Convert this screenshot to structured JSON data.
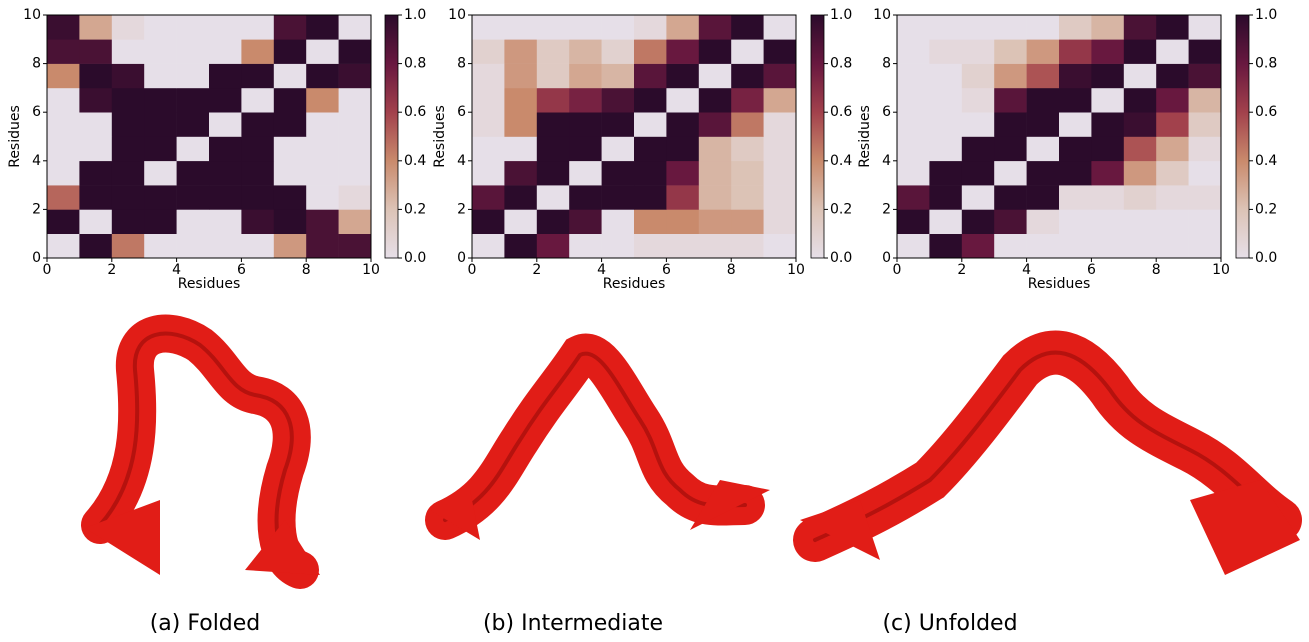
{
  "chart_data": [
    {
      "type": "heatmap",
      "caption": "(a) Folded",
      "xlabel": "Residues",
      "ylabel": "Residues",
      "xlim": [
        0,
        10
      ],
      "ylim": [
        0,
        10
      ],
      "xticks": [
        0,
        2,
        4,
        6,
        8,
        10
      ],
      "yticks": [
        0,
        2,
        4,
        6,
        8,
        10
      ],
      "clim": [
        0,
        1
      ],
      "cticks": [
        {
          "value": 0,
          "label": "0.0"
        },
        0.2,
        0.4,
        0.6,
        0.8,
        {
          "value": 1,
          "label": "1.0"
        }
      ],
      "colormap": [
        "#e6dfe8",
        "#dcc3b6",
        "#c98a6c",
        "#a2414c",
        "#68183f",
        "#2b0b2b"
      ],
      "z": [
        [
          0,
          1,
          0.45,
          0,
          0,
          0,
          0,
          0.35,
          0.9,
          0.9
        ],
        [
          1,
          0,
          1,
          1,
          0,
          0,
          0.95,
          1,
          0.9,
          0.3
        ],
        [
          0.5,
          1,
          1,
          1,
          1,
          1,
          1,
          1,
          0,
          0.05
        ],
        [
          0,
          1,
          1,
          0,
          1,
          1,
          1,
          0,
          0,
          0
        ],
        [
          0,
          0,
          1,
          1,
          0,
          1,
          1,
          0,
          0,
          0
        ],
        [
          0,
          0,
          1,
          1,
          1,
          0,
          1,
          1,
          0,
          0
        ],
        [
          0,
          0.95,
          1,
          1,
          1,
          1,
          0,
          1,
          0.4,
          0
        ],
        [
          0.4,
          1,
          0.95,
          0,
          0,
          1,
          1,
          0,
          1,
          0.95
        ],
        [
          0.9,
          0.9,
          0,
          0,
          0,
          0,
          0.4,
          1,
          0,
          1
        ],
        [
          0.95,
          0.3,
          0.05,
          0,
          0,
          0,
          0,
          0.9,
          1,
          0
        ]
      ]
    },
    {
      "type": "heatmap",
      "caption": "(b) Intermediate",
      "xlabel": "Residues",
      "ylabel": "Residues",
      "xlim": [
        0,
        10
      ],
      "ylim": [
        0,
        10
      ],
      "xticks": [
        0,
        2,
        4,
        6,
        8,
        10
      ],
      "yticks": [
        0,
        2,
        4,
        6,
        8,
        10
      ],
      "clim": [
        0,
        1
      ],
      "cticks": [
        {
          "value": 0,
          "label": "0.0"
        },
        0.2,
        0.4,
        0.6,
        0.8,
        {
          "value": 1,
          "label": "1.0"
        }
      ],
      "colormap": [
        "#e6dfe8",
        "#dcc3b6",
        "#c98a6c",
        "#a2414c",
        "#68183f",
        "#2b0b2b"
      ],
      "z": [
        [
          0,
          1,
          0.8,
          0,
          0,
          0.05,
          0.05,
          0.05,
          0.05,
          0
        ],
        [
          1,
          0,
          1,
          0.9,
          0,
          0.4,
          0.4,
          0.35,
          0.35,
          0.05
        ],
        [
          0.85,
          1,
          0,
          1,
          1,
          1,
          0.65,
          0.25,
          0.2,
          0.05
        ],
        [
          0,
          0.9,
          1,
          0,
          1,
          1,
          0.8,
          0.25,
          0.2,
          0.05
        ],
        [
          0,
          0,
          1,
          1,
          0,
          1,
          1,
          0.25,
          0.15,
          0.05
        ],
        [
          0.05,
          0.4,
          1,
          1,
          1,
          0,
          1,
          0.85,
          0.45,
          0.05
        ],
        [
          0.05,
          0.4,
          0.65,
          0.75,
          0.9,
          1,
          0,
          1,
          0.75,
          0.3
        ],
        [
          0.05,
          0.35,
          0.15,
          0.3,
          0.25,
          0.85,
          1,
          0,
          1,
          0.85
        ],
        [
          0.1,
          0.35,
          0.15,
          0.25,
          0.1,
          0.45,
          0.8,
          1,
          0,
          1
        ],
        [
          0,
          0,
          0,
          0,
          0,
          0.05,
          0.3,
          0.85,
          1,
          0
        ]
      ]
    },
    {
      "type": "heatmap",
      "caption": "(c) Unfolded",
      "xlabel": "Residues",
      "ylabel": "Residues",
      "xlim": [
        0,
        10
      ],
      "ylim": [
        0,
        10
      ],
      "xticks": [
        0,
        2,
        4,
        6,
        8,
        10
      ],
      "yticks": [
        0,
        2,
        4,
        6,
        8,
        10
      ],
      "clim": [
        0,
        1
      ],
      "cticks": [
        {
          "value": 0,
          "label": "0.0"
        },
        0.2,
        0.4,
        0.6,
        0.8,
        {
          "value": 1,
          "label": "1.0"
        }
      ],
      "colormap": [
        "#e6dfe8",
        "#dcc3b6",
        "#c98a6c",
        "#a2414c",
        "#68183f",
        "#2b0b2b"
      ],
      "z": [
        [
          0,
          1,
          0.8,
          0,
          0,
          0,
          0,
          0,
          0,
          0
        ],
        [
          1,
          0,
          1,
          0.9,
          0.05,
          0,
          0,
          0,
          0,
          0
        ],
        [
          0.85,
          1,
          0,
          1,
          1,
          0.05,
          0.05,
          0.1,
          0.05,
          0.05
        ],
        [
          0,
          1,
          1,
          0,
          1,
          1,
          0.8,
          0.35,
          0.15,
          0
        ],
        [
          0,
          0,
          1,
          1,
          0,
          1,
          1,
          0.55,
          0.3,
          0.05
        ],
        [
          0,
          0,
          0,
          1,
          1,
          0,
          1,
          0.95,
          0.6,
          0.15
        ],
        [
          0,
          0,
          0.05,
          0.85,
          1,
          1,
          0,
          1,
          0.8,
          0.25
        ],
        [
          0,
          0,
          0.1,
          0.35,
          0.55,
          0.95,
          1,
          0,
          1,
          0.9
        ],
        [
          0,
          0.05,
          0.05,
          0.2,
          0.35,
          0.65,
          0.8,
          1,
          0,
          1
        ],
        [
          0,
          0,
          0,
          0,
          0,
          0.15,
          0.25,
          0.9,
          1,
          0
        ]
      ]
    }
  ]
}
